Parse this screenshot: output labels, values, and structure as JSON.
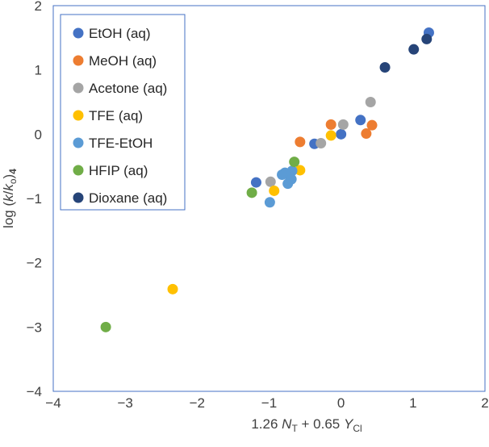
{
  "chart_data": {
    "type": "scatter",
    "title": "",
    "xlabel": {
      "prefix": "1.26 ",
      "var1": "N",
      "sub1": "T",
      "mid": " + 0.65 ",
      "var2": "Y",
      "sub2": "Cl"
    },
    "ylabel": {
      "prefix": "log (",
      "var": "k",
      "sep": "/",
      "var2": "k",
      "sub2": "o",
      "suffix": ")",
      "sub3": "4"
    },
    "xlim": [
      -4,
      2
    ],
    "ylim": [
      -4,
      2
    ],
    "xticks": [
      -4,
      -3,
      -2,
      -1,
      0,
      1,
      2
    ],
    "yticks": [
      -4,
      -3,
      -2,
      -1,
      0,
      1,
      2
    ],
    "xtick_labels": [
      "−4",
      "−3",
      "−2",
      "−1",
      "0",
      "1",
      "2"
    ],
    "ytick_labels": [
      "−4",
      "−3",
      "−2",
      "−1",
      "0",
      "1",
      "2"
    ],
    "grid": false,
    "legend_position": "top-left",
    "series": [
      {
        "name": "EtOH (aq)",
        "color": "#4472C4",
        "x": [
          1.22,
          0.27,
          0.0,
          -0.37,
          -1.18
        ],
        "y": [
          1.58,
          0.22,
          0.0,
          -0.15,
          -0.75
        ]
      },
      {
        "name": "MeOH (aq)",
        "color": "#ED7D31",
        "x": [
          0.43,
          0.35,
          -0.14,
          -0.57
        ],
        "y": [
          0.14,
          0.01,
          0.15,
          -0.12
        ]
      },
      {
        "name": "Acetone (aq)",
        "color": "#A5A5A5",
        "x": [
          0.41,
          0.03,
          -0.28,
          -0.98
        ],
        "y": [
          0.5,
          0.15,
          -0.14,
          -0.74
        ]
      },
      {
        "name": "TFE (aq)",
        "color": "#FFC000",
        "x": [
          -0.14,
          -0.57,
          -0.93,
          -2.34
        ],
        "y": [
          -0.02,
          -0.56,
          -0.88,
          -2.41
        ]
      },
      {
        "name": "TFE-EtOH",
        "color": "#5B9BD5",
        "x": [
          -0.68,
          -0.73,
          -0.78,
          -0.82,
          -0.74,
          -0.69,
          -0.99
        ],
        "y": [
          -0.57,
          -0.63,
          -0.6,
          -0.63,
          -0.77,
          -0.7,
          -1.06
        ]
      },
      {
        "name": "HFIP (aq)",
        "color": "#70AD47",
        "x": [
          -0.65,
          -1.24,
          -3.27
        ],
        "y": [
          -0.43,
          -0.91,
          -3.0
        ]
      },
      {
        "name": "Dioxane (aq)",
        "color": "#264478",
        "x": [
          1.19,
          1.01,
          0.61
        ],
        "y": [
          1.48,
          1.32,
          1.04
        ]
      }
    ]
  }
}
